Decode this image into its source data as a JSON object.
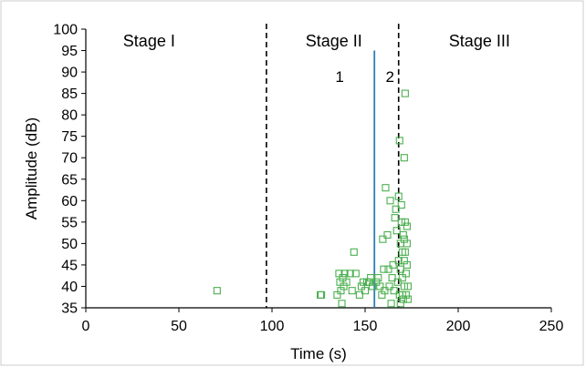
{
  "chart_data": {
    "type": "scatter",
    "xlabel": "Time (s)",
    "ylabel": "Amplitude (dB)",
    "xlim": [
      0,
      250
    ],
    "ylim": [
      35,
      100
    ],
    "x_ticks": [
      "0",
      "50",
      "100",
      "150",
      "200",
      "250"
    ],
    "y_ticks": [
      "35",
      "40",
      "45",
      "50",
      "55",
      "60",
      "65",
      "70",
      "75",
      "80",
      "85",
      "90",
      "95",
      "100"
    ],
    "grid": false,
    "legend": "none",
    "stages": [
      {
        "label": "Stage I",
        "x": 20
      },
      {
        "label": "Stage II",
        "x": 118
      },
      {
        "label": "Stage III",
        "x": 195
      }
    ],
    "boundaries": [
      {
        "x": 97,
        "style": "dashed",
        "color": "#000000"
      },
      {
        "x": 168,
        "style": "dashed",
        "color": "#000000"
      }
    ],
    "marker_line": {
      "x": 155,
      "y0": 35,
      "y1": 95,
      "color": "#2a7fb5"
    },
    "region_labels": [
      {
        "text": "1",
        "x": 134,
        "y": 89
      },
      {
        "text": "2",
        "x": 161,
        "y": 89
      }
    ],
    "series": [
      {
        "marker": "open-square",
        "color": "#4caf50",
        "points": [
          [
            70.5,
            39
          ],
          [
            126,
            38
          ],
          [
            126.5,
            38
          ],
          [
            135,
            38
          ],
          [
            136,
            43
          ],
          [
            136.5,
            41
          ],
          [
            137,
            39
          ],
          [
            137.5,
            36
          ],
          [
            138,
            42
          ],
          [
            138.5,
            40
          ],
          [
            139,
            43
          ],
          [
            140,
            41
          ],
          [
            142,
            43
          ],
          [
            143,
            39
          ],
          [
            144,
            48
          ],
          [
            145,
            43
          ],
          [
            147,
            38
          ],
          [
            148,
            40
          ],
          [
            149,
            41
          ],
          [
            150,
            39
          ],
          [
            151,
            41
          ],
          [
            152,
            41
          ],
          [
            153,
            42
          ],
          [
            154,
            40
          ],
          [
            156,
            41
          ],
          [
            157,
            42
          ],
          [
            158,
            40
          ],
          [
            159,
            38
          ],
          [
            159.5,
            51
          ],
          [
            160,
            44
          ],
          [
            160.5,
            39
          ],
          [
            161,
            63
          ],
          [
            162,
            52
          ],
          [
            162.5,
            44
          ],
          [
            163,
            40
          ],
          [
            163.5,
            60
          ],
          [
            164,
            36
          ],
          [
            164.5,
            42
          ],
          [
            165,
            45
          ],
          [
            165.5,
            39
          ],
          [
            166,
            56
          ],
          [
            166.5,
            58
          ],
          [
            167,
            53
          ],
          [
            167.5,
            41
          ],
          [
            168,
            61
          ],
          [
            168,
            46
          ],
          [
            168.5,
            38
          ],
          [
            168.5,
            74
          ],
          [
            169,
            50
          ],
          [
            169,
            44
          ],
          [
            169,
            36
          ],
          [
            169.5,
            55
          ],
          [
            169.5,
            59
          ],
          [
            170,
            48
          ],
          [
            170,
            42
          ],
          [
            170,
            38
          ],
          [
            170.5,
            52
          ],
          [
            170.5,
            37
          ],
          [
            171,
            70
          ],
          [
            171,
            51
          ],
          [
            171,
            46
          ],
          [
            171,
            40
          ],
          [
            171.5,
            85
          ],
          [
            171.5,
            55
          ],
          [
            171.5,
            48
          ],
          [
            172,
            43
          ],
          [
            172,
            38
          ],
          [
            172.5,
            54
          ],
          [
            172.5,
            50
          ],
          [
            172.5,
            45
          ],
          [
            173,
            40
          ],
          [
            173,
            37
          ]
        ]
      }
    ]
  }
}
